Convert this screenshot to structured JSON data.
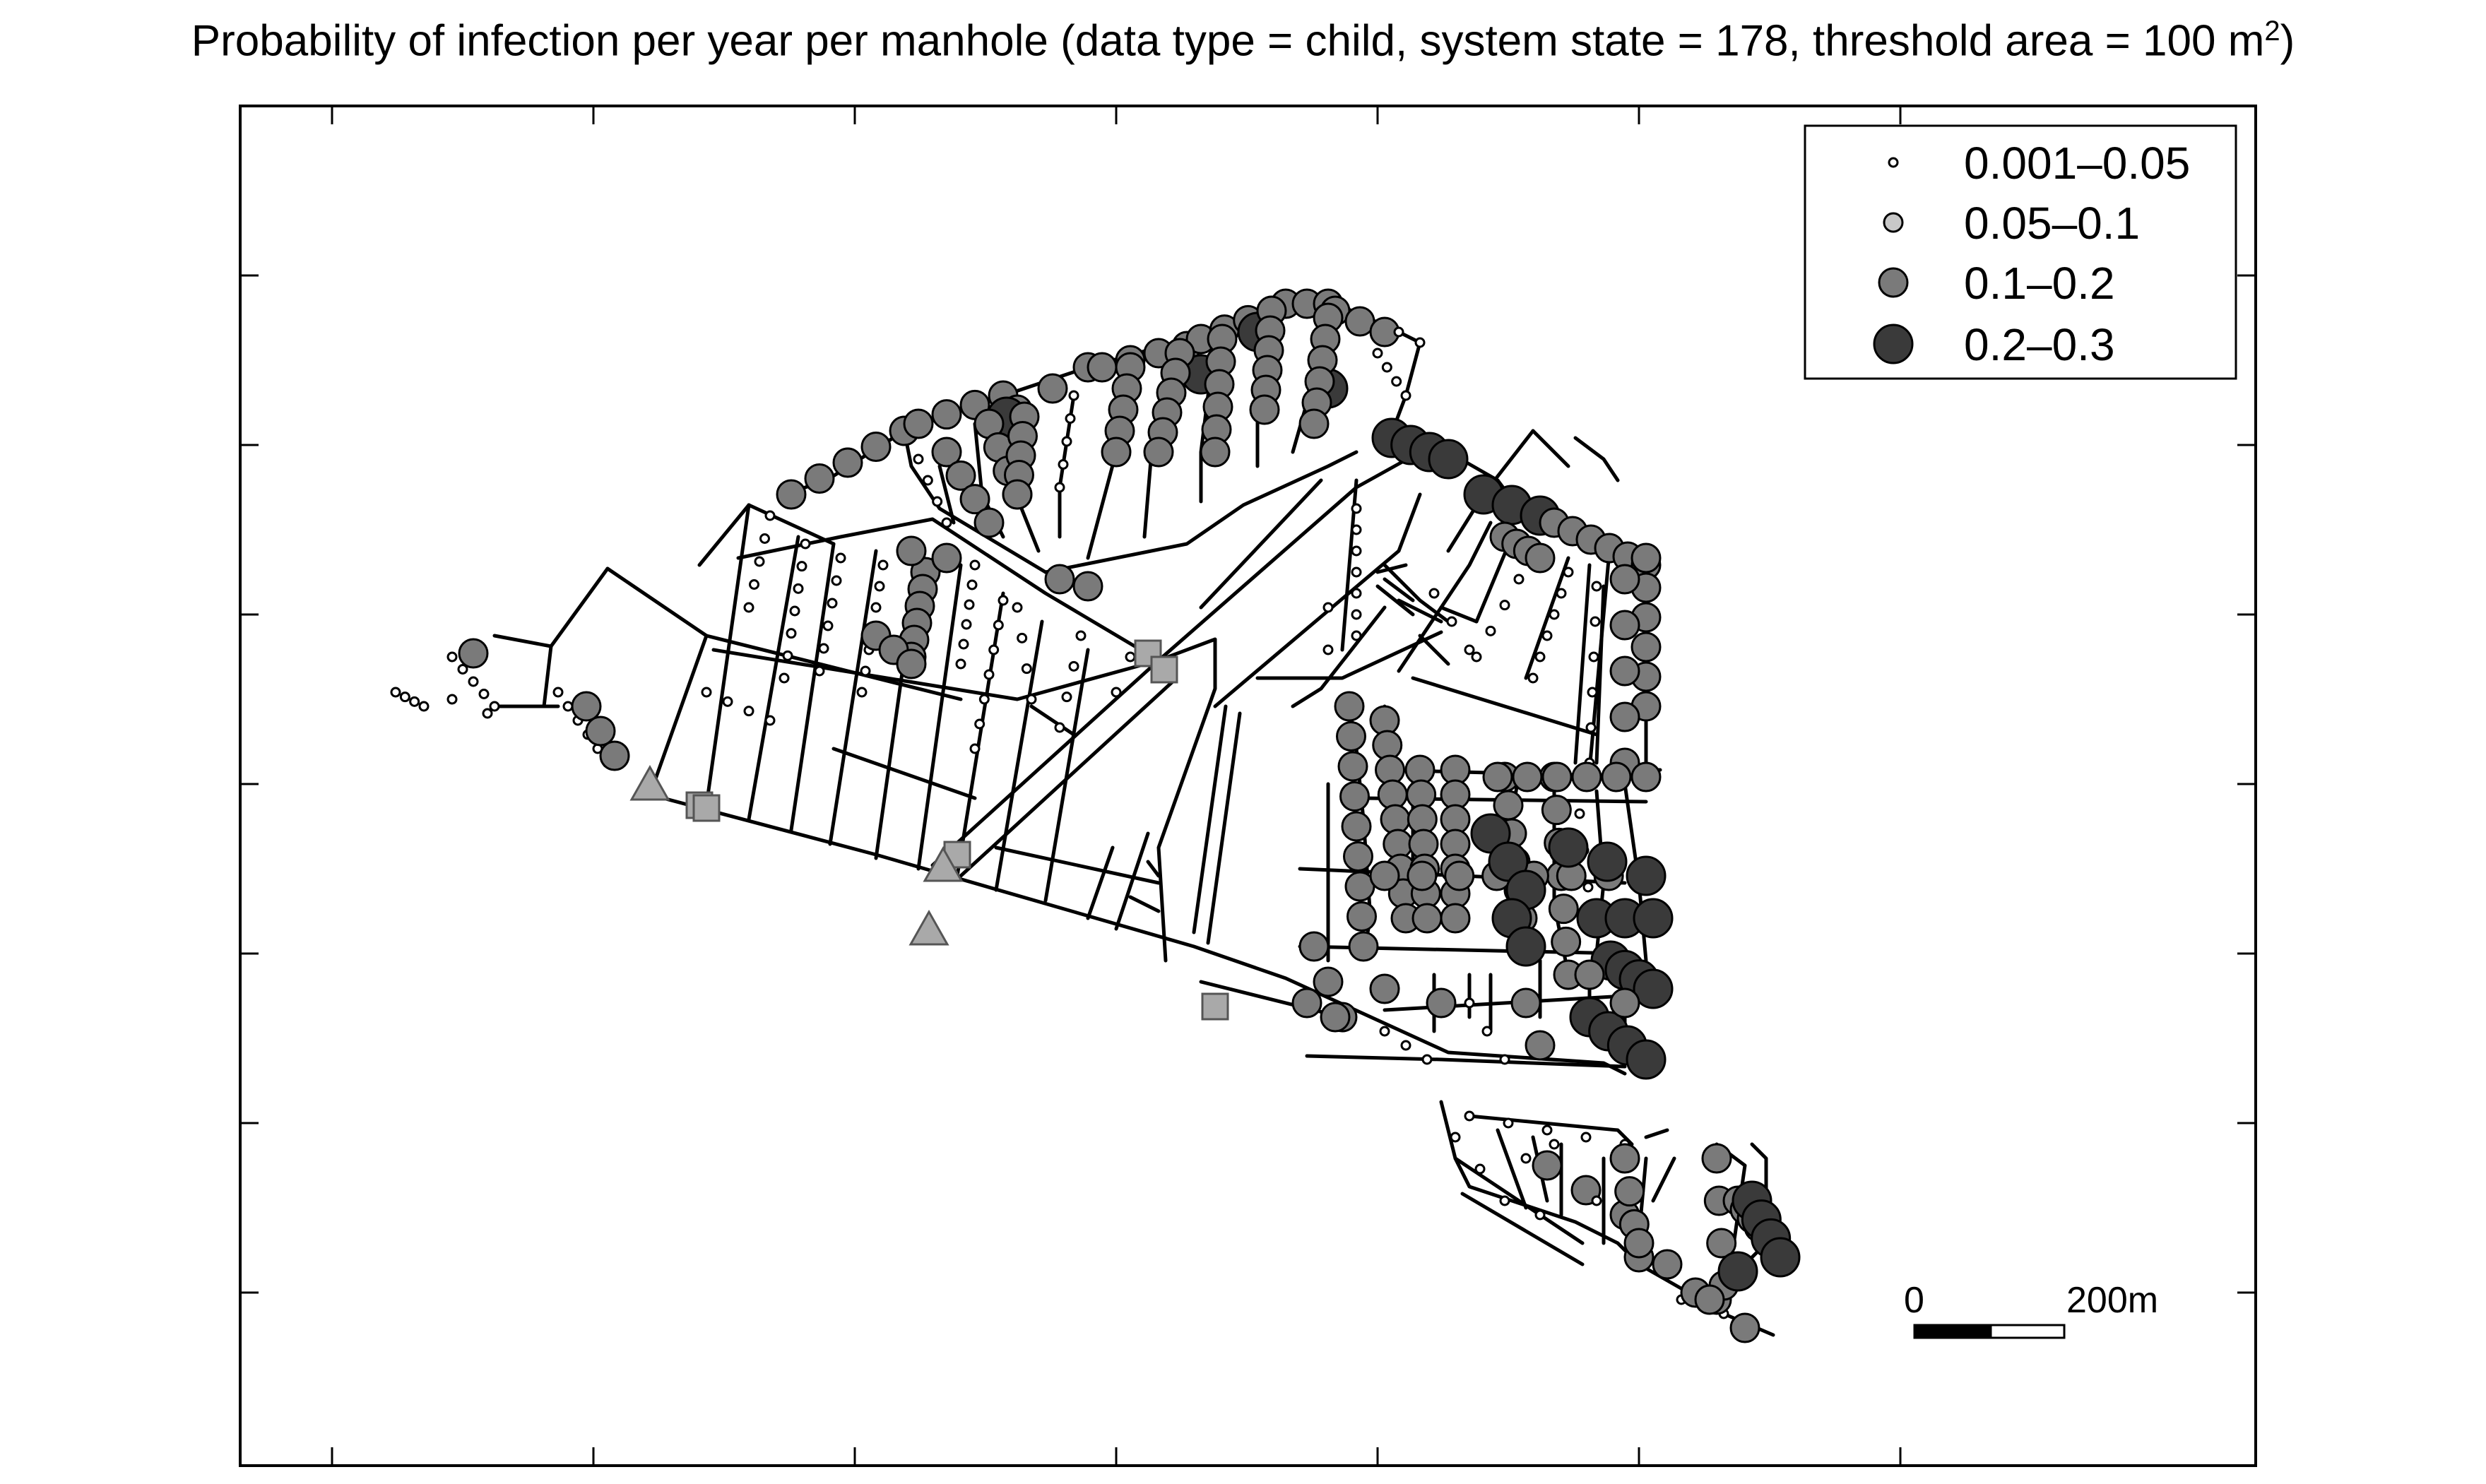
{
  "title": {
    "text": "Probability of infection per year per manhole (data type = child, system state = 178, threshold area = 100 m",
    "superscript": "2",
    "closing": ")"
  },
  "legend": {
    "placement": "top-right",
    "items": [
      {
        "label": "0.001–0.05",
        "class": "c1",
        "fill": "#ffffff"
      },
      {
        "label": "0.05–0.1",
        "class": "c2",
        "fill": "#c8c8c8"
      },
      {
        "label": "0.1–0.2",
        "class": "c3",
        "fill": "#7a7a7a"
      },
      {
        "label": "0.2–0.3",
        "class": "c4",
        "fill": "#3a3a3a"
      }
    ]
  },
  "scale_bar": {
    "start_label": "0",
    "end_label": "200m"
  },
  "colors": {
    "pipe": "#000000",
    "outlet_fill": "#a9a9a9",
    "frame": "#000000",
    "background": "#ffffff"
  },
  "symbols": {
    "outlet_squares": 6,
    "outlet_triangles": 3
  }
}
